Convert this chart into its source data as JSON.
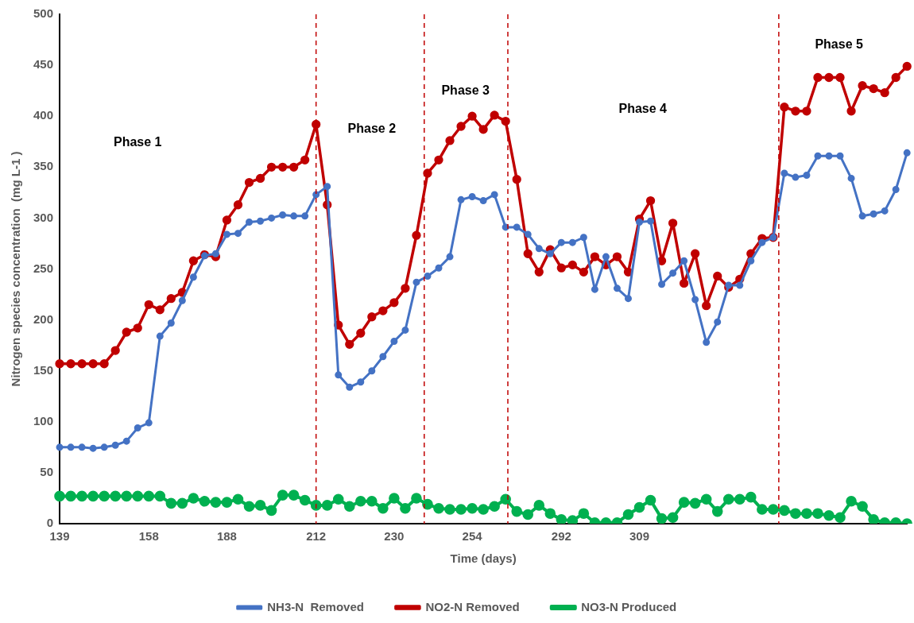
{
  "chart_data": {
    "type": "line",
    "xlabel": "Time (days)",
    "ylabel": "Nitrogen species concentration  (mg L-1 )",
    "categories": [
      "139",
      null,
      null,
      null,
      null,
      null,
      null,
      null,
      "158",
      null,
      null,
      null,
      null,
      null,
      null,
      "188",
      null,
      null,
      null,
      null,
      null,
      null,
      null,
      "212",
      null,
      null,
      null,
      null,
      null,
      null,
      "230",
      null,
      null,
      null,
      null,
      null,
      null,
      "254",
      null,
      null,
      null,
      null,
      null,
      null,
      null,
      "292",
      null,
      null,
      null,
      null,
      null,
      null,
      "309",
      null,
      null,
      null,
      null,
      null,
      null,
      null,
      null,
      null,
      null,
      null,
      null,
      null,
      null,
      null,
      null,
      null,
      null,
      null,
      null,
      null,
      null,
      null,
      null
    ],
    "series": [
      {
        "name": "NH3-N  Removed",
        "color": "#4472c4",
        "values": [
          75,
          75,
          75,
          74,
          75,
          77,
          81,
          94,
          99,
          184,
          197,
          219,
          242,
          263,
          265,
          284,
          285,
          296,
          297,
          300,
          303,
          302,
          302,
          323,
          331,
          146,
          134,
          139,
          150,
          164,
          179,
          190,
          237,
          243,
          251,
          262,
          318,
          321,
          317,
          323,
          291,
          291,
          284,
          270,
          265,
          276,
          276,
          281,
          230,
          262,
          231,
          221,
          296,
          297,
          235,
          246,
          258,
          220,
          178,
          198,
          234,
          234,
          258,
          276,
          281,
          344,
          340,
          342,
          361,
          361,
          361,
          339,
          302,
          304,
          307,
          328,
          364
        ]
      },
      {
        "name": "NO2-N Removed",
        "color": "#c00000",
        "values": [
          157,
          157,
          157,
          157,
          157,
          170,
          188,
          192,
          215,
          210,
          221,
          227,
          258,
          264,
          262,
          298,
          313,
          335,
          339,
          350,
          350,
          350,
          357,
          392,
          313,
          195,
          176,
          187,
          203,
          209,
          217,
          231,
          283,
          344,
          357,
          376,
          390,
          400,
          387,
          401,
          395,
          338,
          265,
          247,
          269,
          251,
          254,
          247,
          262,
          254,
          262,
          247,
          299,
          317,
          258,
          295,
          236,
          265,
          214,
          243,
          232,
          240,
          265,
          280,
          281,
          409,
          405,
          405,
          438,
          438,
          438,
          405,
          430,
          427,
          423,
          438,
          449
        ]
      },
      {
        "name": "NO3-N Produced",
        "color": "#00b050",
        "values": [
          27,
          27,
          27,
          27,
          27,
          27,
          27,
          27,
          27,
          27,
          20,
          20,
          25,
          22,
          21,
          21,
          24,
          17,
          18,
          13,
          28,
          28,
          23,
          18,
          18,
          24,
          17,
          22,
          22,
          15,
          25,
          15,
          25,
          19,
          15,
          14,
          14,
          15,
          14,
          17,
          24,
          12,
          9,
          18,
          10,
          4,
          3,
          10,
          1,
          1,
          1,
          9,
          16,
          23,
          5,
          6,
          21,
          20,
          24,
          12,
          24,
          24,
          26,
          14,
          14,
          13,
          10,
          10,
          10,
          8,
          6,
          22,
          17,
          4,
          1,
          1,
          0
        ]
      }
    ],
    "ylim": [
      0,
      500
    ],
    "yticks": [
      0,
      50,
      100,
      150,
      200,
      250,
      300,
      350,
      400,
      450,
      500
    ],
    "annotations": [
      "Phase 1",
      "Phase 2",
      "Phase 3",
      "Phase 4",
      "Phase 5"
    ],
    "grid": false,
    "legend": "bottom",
    "marker": "circle",
    "line_style": "solid"
  }
}
